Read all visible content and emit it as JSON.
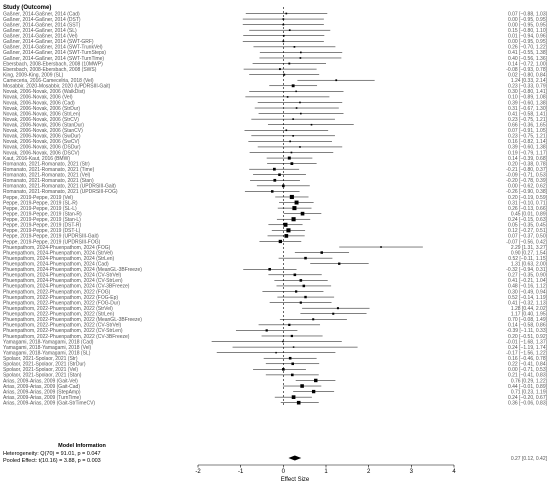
{
  "chart_data": {
    "type": "forest",
    "header": "Study (Outcome)",
    "xlabel": "Effect Size",
    "xlim": [
      -2,
      4
    ],
    "xticks": [
      -2,
      -1,
      0,
      1,
      2,
      3,
      4
    ],
    "studies": [
      {
        "label": "Gaßner, 2014-Gaßner, 2014 (Cad)",
        "est": 0.07,
        "lo": -0.88,
        "hi": 1.03
      },
      {
        "label": "Gaßner, 2014-Gaßner, 2014 (DST)",
        "est": 0.0,
        "lo": -0.95,
        "hi": 0.95
      },
      {
        "label": "Gaßner, 2014-Gaßner, 2014 (SST)",
        "est": 0.0,
        "lo": -0.95,
        "hi": 0.95
      },
      {
        "label": "Gaßner, 2014-Gaßner, 2014 (SL)",
        "est": 0.15,
        "lo": -0.8,
        "hi": 1.1
      },
      {
        "label": "Gaßner, 2014-Gaßner, 2014 (Vel)",
        "est": 0.01,
        "lo": -0.94,
        "hi": 0.96
      },
      {
        "label": "Gaßner, 2014-Gaßner, 2014 (SWT-GRF)",
        "est": 0.0,
        "lo": -0.95,
        "hi": 0.95
      },
      {
        "label": "Gaßner, 2014-Gaßner, 2014 (SWT-TrunkVel)",
        "est": 0.26,
        "lo": -0.7,
        "hi": 1.22
      },
      {
        "label": "Gaßner, 2014-Gaßner, 2014 (SWT-TurnSteps)",
        "est": 0.41,
        "lo": -0.55,
        "hi": 1.38
      },
      {
        "label": "Gaßner, 2014-Gaßner, 2014 (SWT-TurnTime)",
        "est": 0.4,
        "lo": -0.56,
        "hi": 1.36
      },
      {
        "label": "Ebersbach, 2008-Ebersbach, 2008 (10MWP)",
        "est": 0.14,
        "lo": -0.72,
        "hi": 1.0
      },
      {
        "label": "Ebersbach, 2008-Ebersbach, 2008 (SWS)",
        "est": -0.08,
        "lo": -0.93,
        "hi": 0.78
      },
      {
        "label": "King, 2009-King, 2009 (SL)",
        "est": 0.02,
        "lo": -0.8,
        "hi": 0.84
      },
      {
        "label": "Cameceria, 2016-Camecelria, 2018 (Vel)",
        "est": 1.24,
        "lo": 0.33,
        "hi": 2.14
      },
      {
        "label": "Mosabbir, 2020-Mosabbir, 2020 (UPDRSIII-Gait)",
        "est": 0.23,
        "lo": -0.33,
        "hi": 0.79
      },
      {
        "label": "Novak, 2006-Novak, 2006 (WalkDist)",
        "est": 0.3,
        "lo": -0.8,
        "hi": 1.41
      },
      {
        "label": "Novak, 2006-Novak, 2006 (Vel)",
        "est": 0.1,
        "lo": -0.89,
        "hi": 1.08
      },
      {
        "label": "Novak, 2006-Novak, 2006 (Cad)",
        "est": 0.39,
        "lo": -0.6,
        "hi": 1.38
      },
      {
        "label": "Novak, 2006-Novak, 2006 (StrDur)",
        "est": 0.31,
        "lo": -0.67,
        "hi": 1.3
      },
      {
        "label": "Novak, 2006-Novak, 2006 (StrLen)",
        "est": 0.41,
        "lo": -0.58,
        "hi": 1.41
      },
      {
        "label": "Novak, 2006-Novak, 2006 (StrCV)",
        "est": 0.23,
        "lo": -0.75,
        "hi": 1.21
      },
      {
        "label": "Novak, 2006-Novak, 2006 (StanDur)",
        "est": 0.66,
        "lo": -0.36,
        "hi": 1.65
      },
      {
        "label": "Novak, 2006-Novak, 2006 (StanCV)",
        "est": 0.07,
        "lo": -0.91,
        "hi": 1.05
      },
      {
        "label": "Novak, 2006-Novak, 2006 (SwDur)",
        "est": 0.23,
        "lo": -0.75,
        "hi": 1.21
      },
      {
        "label": "Novak, 2006-Novak, 2006 (SwCV)",
        "est": 0.16,
        "lo": -0.82,
        "hi": 1.14
      },
      {
        "label": "Novak, 2006-Novak, 2006 (DSDur)",
        "est": 0.39,
        "lo": -0.6,
        "hi": 1.38
      },
      {
        "label": "Novak, 2006-Novak, 2006 (DSCV)",
        "est": 0.19,
        "lo": -0.79,
        "hi": 1.17
      },
      {
        "label": "Kaut, 2016-Kaut, 2016 (BMW)",
        "est": 0.14,
        "lo": -0.39,
        "hi": 0.68
      },
      {
        "label": "Romanato, 2021-Romanato, 2021 (Str)",
        "est": 0.2,
        "lo": -0.38,
        "hi": 0.78
      },
      {
        "label": "Romanato, 2021-Romanato, 2021 (Time)",
        "est": -0.21,
        "lo": -0.8,
        "hi": 0.37
      },
      {
        "label": "Romanato, 2021-Romanato, 2021 (Vel)",
        "est": -0.09,
        "lo": -0.71,
        "hi": 0.53
      },
      {
        "label": "Romanato, 2021-Romanato, 2021 (Stan)",
        "est": -0.2,
        "lo": -0.78,
        "hi": 0.39
      },
      {
        "label": "Romanato, 2021-Romanato, 2021 (UPDRSIII-Gait)",
        "est": 0.0,
        "lo": -0.62,
        "hi": 0.62
      },
      {
        "label": "Romanato, 2021-Romanato, 2021 (UPDRSIII-FOG)",
        "est": -0.26,
        "lo": -0.9,
        "hi": 0.38
      },
      {
        "label": "Peppe, 2019-Peppe, 2019 (Vel)",
        "est": 0.2,
        "lo": -0.19,
        "hi": 0.59
      },
      {
        "label": "Peppe, 2019-Peppe, 2019 (SL-R)",
        "est": 0.31,
        "lo": -0.1,
        "hi": 0.71
      },
      {
        "label": "Peppe, 2019-Peppe, 2019 (SL-L)",
        "est": 0.26,
        "lo": -0.13,
        "hi": 0.66
      },
      {
        "label": "Peppe, 2019-Peppe, 2019 (Stan-R)",
        "est": 0.45,
        "lo": 0.01,
        "hi": 0.89
      },
      {
        "label": "Peppe, 2019-Peppe, 2019 (Stan-L)",
        "est": 0.24,
        "lo": -0.15,
        "hi": 0.63
      },
      {
        "label": "Peppe, 2019-Peppe, 2019 (DST-R)",
        "est": 0.05,
        "lo": -0.35,
        "hi": 0.45
      },
      {
        "label": "Peppe, 2019-Peppe, 2019 (DST-L)",
        "est": 0.12,
        "lo": -0.27,
        "hi": 0.51
      },
      {
        "label": "Peppe, 2019-Peppe, 2019 (UPDRSIII-Gait)",
        "est": 0.07,
        "lo": -0.37,
        "hi": 0.5
      },
      {
        "label": "Peppe, 2019-Peppe, 2019 (UPDRSIII-FOG)",
        "est": -0.07,
        "lo": -0.56,
        "hi": 0.42
      },
      {
        "label": "Phuenpathom, 2024-Phuenpathom, 2024 (FOG)",
        "est": 2.29,
        "lo": 1.31,
        "hi": 3.27
      },
      {
        "label": "Phuenpathom, 2024-Phuenpathom, 2024 (StrVel)",
        "est": 0.9,
        "lo": 0.27,
        "hi": 1.54
      },
      {
        "label": "Phuenpathom, 2024-Phuenpathom, 2024 (StrLen)",
        "est": 0.52,
        "lo": -0.11,
        "hi": 1.15
      },
      {
        "label": "Phuenpathom, 2024-Phuenpathom, 2024 (Cad)",
        "est": 1.31,
        "lo": 0.63,
        "hi": 2.0
      },
      {
        "label": "Phuenpathom, 2024-Phuenpathom, 2024 (MeanGL-3BFreeze)",
        "est": -0.32,
        "lo": -0.94,
        "hi": 0.31
      },
      {
        "label": "Phuenpathom, 2024-Phuenpathom, 2024 (CV-StrVel)",
        "est": 0.27,
        "lo": -0.35,
        "hi": 0.9
      },
      {
        "label": "Phuenpathom, 2024-Phuenpathom, 2024 (CV-StrLen)",
        "est": 0.41,
        "lo": -0.21,
        "hi": 1.04
      },
      {
        "label": "Phuenpathom, 2024-Phuenpathom, 2024 (CV-3BFreeze)",
        "est": 0.48,
        "lo": -0.16,
        "hi": 1.12
      },
      {
        "label": "Phuenpathom, 2022-Phuenpathom, 2022 (FOG)",
        "est": 0.3,
        "lo": -0.49,
        "hi": 0.94
      },
      {
        "label": "Phuenpathom, 2022-Phuenpathom, 2022 (FOG-Ep)",
        "est": 0.52,
        "lo": -0.14,
        "hi": 1.19
      },
      {
        "label": "Phuenpathom, 2022-Phuenpathom, 2022 (FOG-Dur)",
        "est": 0.41,
        "lo": -0.32,
        "hi": 1.13
      },
      {
        "label": "Phuenpathom, 2022-Phuenpathom, 2022 (StrVel)",
        "est": 1.28,
        "lo": 0.44,
        "hi": 2.02
      },
      {
        "label": "Phuenpathom, 2022-Phuenpathom, 2022 (StrLen)",
        "est": 1.17,
        "lo": 0.4,
        "hi": 1.95
      },
      {
        "label": "Phuenpathom, 2022-Phuenpathom, 2022 (MeanGL-3BFreeze)",
        "est": 0.7,
        "lo": -0.08,
        "hi": 1.49
      },
      {
        "label": "Phuenpathom, 2022-Phuenpathom, 2022 (CV-StrVel)",
        "est": 0.14,
        "lo": -0.58,
        "hi": 0.86
      },
      {
        "label": "Phuenpathom, 2022-Phuenpathom, 2022 (CV-StrLen)",
        "est": -0.39,
        "lo": -1.11,
        "hi": 0.33
      },
      {
        "label": "Phuenpathom, 2022-Phuenpathom, 2022 (CV-3BFreeze)",
        "est": 0.2,
        "lo": -0.51,
        "hi": 0.92
      },
      {
        "label": "Yamagami, 2018-Yamagami, 2018 (Cad)",
        "est": -0.01,
        "lo": -1.68,
        "hi": 1.37
      },
      {
        "label": "Yamagami, 2018-Yamagami, 2018 (Vel)",
        "est": 0.24,
        "lo": -1.19,
        "hi": 1.74
      },
      {
        "label": "Yamagami, 2018-Yamagami, 2018 (SL)",
        "est": -0.17,
        "lo": -1.56,
        "hi": 1.22
      },
      {
        "label": "Spolaor, 2021-Spolaor, 2021 (Str)",
        "est": 0.16,
        "lo": -0.46,
        "hi": 0.78
      },
      {
        "label": "Spolaor, 2021-Spolaor, 2021 (StrDur)",
        "est": 0.22,
        "lo": -0.41,
        "hi": 0.84
      },
      {
        "label": "Spolaor, 2021-Spolaor, 2021 (Vel)",
        "est": 0.0,
        "lo": -0.71,
        "hi": 0.53
      },
      {
        "label": "Spolaor, 2021-Spolaor, 2021 (Stan)",
        "est": 0.21,
        "lo": -0.41,
        "hi": 0.83
      },
      {
        "label": "Arias, 2009-Arias, 2009 (Gait-Vel)",
        "est": 0.76,
        "lo": 0.29,
        "hi": 1.22
      },
      {
        "label": "Arias, 2009-Arias, 2009 (Gait-Cad)",
        "est": 0.44,
        "lo": -0.01,
        "hi": 0.89
      },
      {
        "label": "Arias, 2009-Arias, 2009 (StepAmp)",
        "est": 0.71,
        "lo": 0.23,
        "hi": 1.19
      },
      {
        "label": "Arias, 2009-Arias, 2009 (TurnTime)",
        "est": 0.24,
        "lo": -0.2,
        "hi": 0.67
      },
      {
        "label": "Arias, 2009-Arias, 2009 (Gait-StrTimeCV)",
        "est": 0.36,
        "lo": -0.06,
        "hi": 0.83
      }
    ],
    "pooled": {
      "est": 0.27,
      "lo": 0.12,
      "hi": 0.42
    },
    "model_info": {
      "title": "Model Information",
      "heterogeneity": "Heterogeneity: Q(70) = 91.01, p = 0.047",
      "pooled_effect": "Pooled Effect: t(10.16) = 3.88, p = 0.003"
    },
    "colors": {
      "marker": "#000000",
      "line": "#000000",
      "text": "#555555",
      "pooled": "#000000"
    }
  }
}
